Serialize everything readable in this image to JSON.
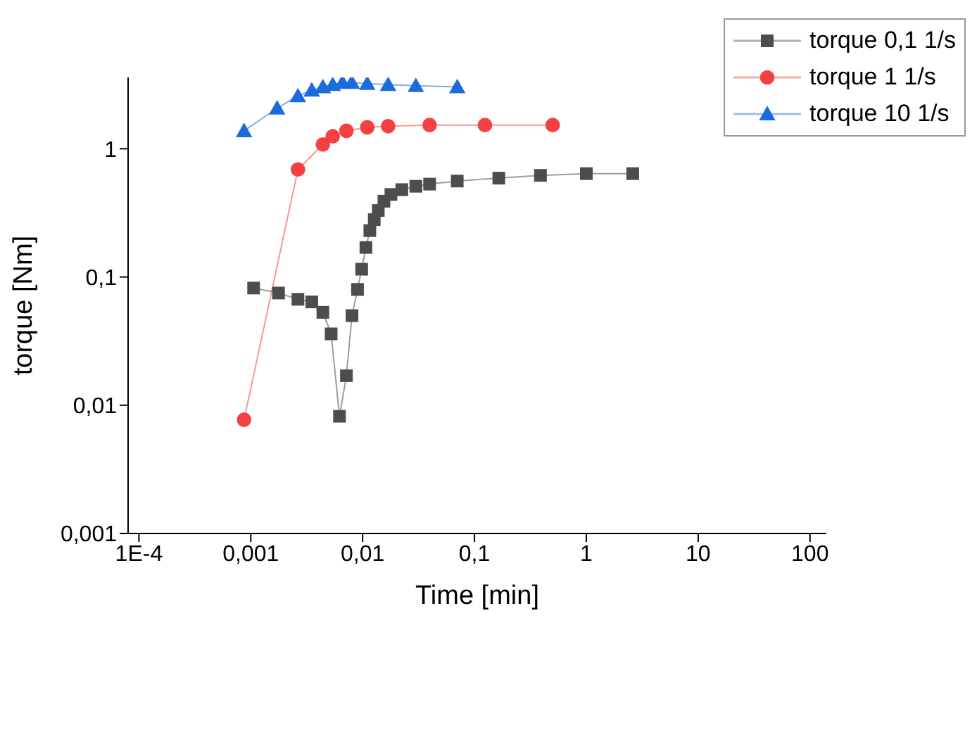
{
  "chart_data": {
    "type": "line",
    "xlabel": "Time [min]",
    "ylabel": "torque [Nm]",
    "log": "xy",
    "grid": false,
    "legend": "top right",
    "xlim": [
      8e-05,
      140
    ],
    "xticks": [
      {
        "value": 0.0001,
        "label": "1E-4"
      },
      {
        "value": 0.001,
        "label": "0,001"
      },
      {
        "value": 0.01,
        "label": "0,01"
      },
      {
        "value": 0.1,
        "label": "0,1"
      },
      1,
      10,
      100
    ],
    "ylim": [
      0.001,
      3.6
    ],
    "yticks": [
      {
        "value": 0.001,
        "label": "0,001"
      },
      {
        "value": 0.01,
        "label": "0,01"
      },
      {
        "value": 0.1,
        "label": "0,1"
      },
      1
    ],
    "series": [
      {
        "name": "torque 0,1 1/s",
        "color": "#4d4d4d",
        "marker": "square",
        "x": [
          0.00106,
          0.00177,
          0.00264,
          0.00351,
          0.00441,
          0.00523,
          0.00621,
          0.00716,
          0.00803,
          0.009,
          0.0098,
          0.0107,
          0.0116,
          0.0127,
          0.0138,
          0.0155,
          0.0179,
          0.0224,
          0.0299,
          0.0397,
          0.0701,
          0.165,
          0.389,
          1.0,
          2.6
        ],
        "values": [
          0.082,
          0.075,
          0.067,
          0.064,
          0.053,
          0.036,
          0.0082,
          0.017,
          0.05,
          0.08,
          0.115,
          0.17,
          0.23,
          0.28,
          0.33,
          0.39,
          0.44,
          0.48,
          0.51,
          0.53,
          0.56,
          0.59,
          0.62,
          0.64,
          0.64
        ]
      },
      {
        "name": "torque 1 1/s",
        "color": "#f44040",
        "marker": "circle",
        "x": [
          0.00087,
          0.00264,
          0.00441,
          0.0054,
          0.00716,
          0.011,
          0.0169,
          0.0397,
          0.124,
          0.5
        ],
        "values": [
          0.0077,
          0.69,
          1.08,
          1.25,
          1.38,
          1.47,
          1.5,
          1.53,
          1.53,
          1.53
        ]
      },
      {
        "name": "torque 10 1/s",
        "color": "#1a6bdc",
        "marker": "triangle",
        "x": [
          0.00087,
          0.00172,
          0.00264,
          0.00351,
          0.00441,
          0.0054,
          0.0066,
          0.008,
          0.011,
          0.0169,
          0.0299,
          0.0701
        ],
        "values": [
          1.38,
          2.07,
          2.58,
          2.86,
          3.04,
          3.16,
          3.29,
          3.29,
          3.22,
          3.16,
          3.1,
          3.04
        ]
      }
    ]
  }
}
